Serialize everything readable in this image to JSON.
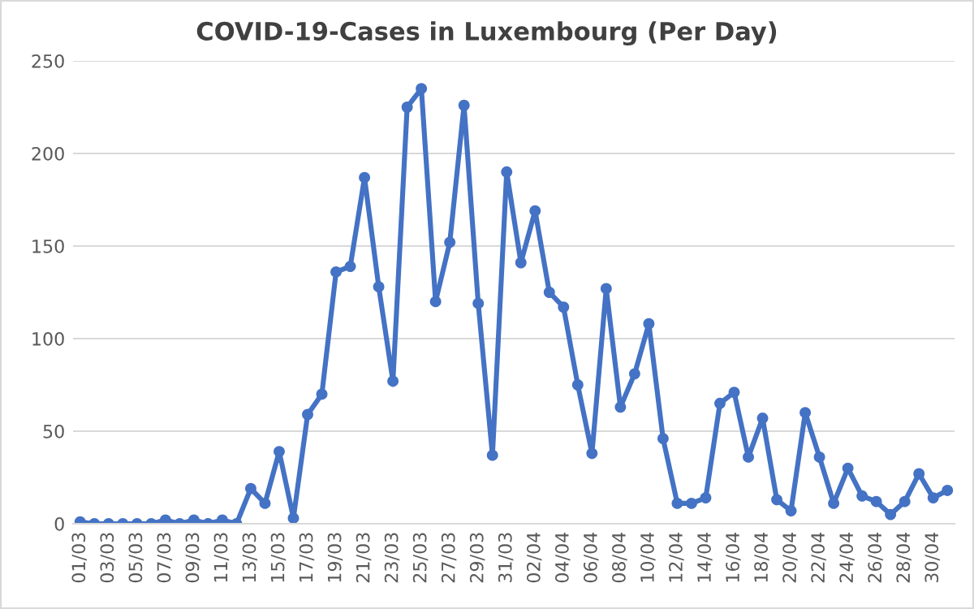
{
  "chart_data": {
    "type": "line",
    "title": "COVID-19-Cases in Luxembourg (Per Day)",
    "categories": [
      "01/03",
      null,
      "03/03",
      null,
      "05/03",
      null,
      "07/03",
      null,
      "09/03",
      null,
      "11/03",
      null,
      "13/03",
      null,
      "15/03",
      null,
      "17/03",
      null,
      "19/03",
      null,
      "21/03",
      null,
      "23/03",
      null,
      "25/03",
      null,
      "27/03",
      null,
      "29/03",
      null,
      "31/03",
      null,
      "02/04",
      null,
      "04/04",
      null,
      "06/04",
      null,
      "08/04",
      null,
      "10/04",
      null,
      "12/04",
      null,
      "14/04",
      null,
      "16/04",
      null,
      "18/04",
      null,
      "20/04",
      null,
      "22/04",
      null,
      "24/04",
      null,
      "26/04",
      null,
      "28/04",
      null,
      "30/04",
      null
    ],
    "series": [
      {
        "color": "#4472c4",
        "values": [
          1,
          0,
          0,
          0,
          0,
          0,
          2,
          0,
          2,
          0,
          2,
          0,
          19,
          11,
          39,
          3,
          59,
          70,
          136,
          139,
          187,
          128,
          77,
          225,
          235,
          120,
          152,
          226,
          119,
          37,
          190,
          141,
          169,
          125,
          117,
          75,
          38,
          127,
          63,
          81,
          108,
          46,
          11,
          11,
          14,
          65,
          71,
          36,
          57,
          13,
          7,
          60,
          36,
          11,
          30,
          15,
          12,
          5,
          12,
          27,
          14,
          18
        ]
      }
    ],
    "ylim": [
      0,
      250
    ],
    "yticks": [
      0,
      50,
      100,
      150,
      200,
      250
    ],
    "grid": "y",
    "marker": "circle",
    "line_style": "solid"
  }
}
